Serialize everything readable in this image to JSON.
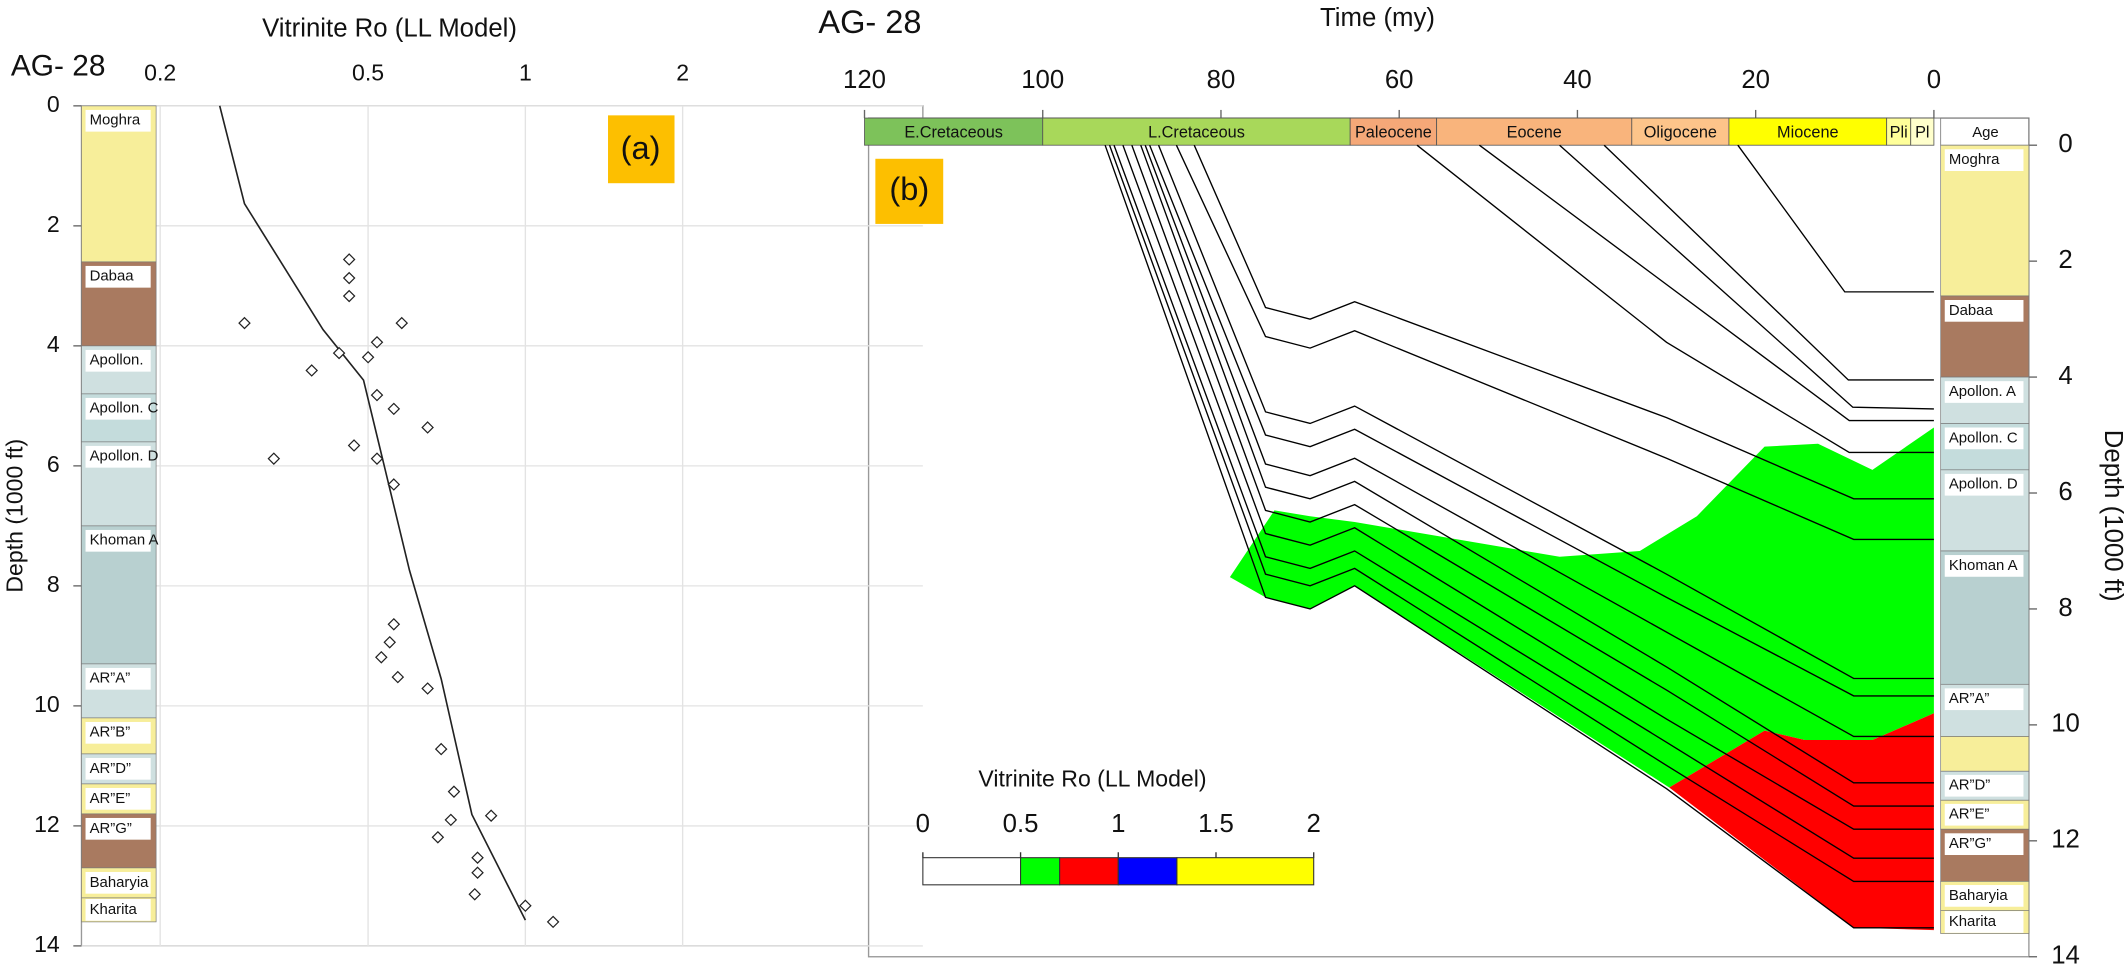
{
  "chart_data": [
    {
      "type": "scatter",
      "label": "AG- 28",
      "panel_label": "(a)",
      "title": "Vitrinite Ro (LL Model)",
      "y_label": "Depth (1000 ft)",
      "log_x": true,
      "xlim": [
        0.2,
        2
      ],
      "xticks": [
        0.2,
        0.5,
        1,
        2
      ],
      "ylim": [
        0,
        14
      ],
      "yticks": [
        0,
        2,
        4,
        6,
        8,
        10,
        12,
        14
      ],
      "grid": true,
      "x": [
        0.46,
        0.46,
        0.46,
        0.29,
        0.58,
        0.52,
        0.44,
        0.5,
        0.39,
        0.52,
        0.56,
        0.65,
        0.47,
        0.33,
        0.52,
        0.56,
        0.56,
        0.55,
        0.53,
        0.57,
        0.65,
        0.69,
        0.73,
        0.72,
        0.86,
        0.68,
        0.81,
        0.81,
        0.8,
        1.0,
        1.13
      ],
      "values": [
        2.56,
        2.87,
        3.17,
        3.62,
        3.62,
        3.94,
        4.12,
        4.19,
        4.41,
        4.82,
        5.05,
        5.36,
        5.66,
        5.88,
        5.88,
        6.31,
        8.64,
        8.94,
        9.19,
        9.52,
        9.71,
        10.72,
        11.43,
        11.9,
        11.83,
        12.19,
        12.53,
        12.78,
        13.14,
        13.33,
        13.6
      ],
      "line": {
        "x": [
          0.26,
          0.29,
          0.41,
          0.49,
          0.6,
          0.69,
          0.79,
          1.0
        ],
        "values": [
          0,
          1.63,
          3.73,
          4.57,
          7.74,
          9.55,
          11.81,
          13.57
        ]
      },
      "layers": [
        {
          "label": "Moghra",
          "top": 0,
          "base": 2.6,
          "color": "#f7ee9a"
        },
        {
          "label": "Dabaa",
          "top": 2.6,
          "base": 4.0,
          "color": "#a97a60"
        },
        {
          "label": "Apollon.",
          "top": 4.0,
          "base": 4.8,
          "color": "#cfe0e0"
        },
        {
          "label": "Apollon. C",
          "top": 4.8,
          "base": 5.6,
          "color": "#c4dcdc"
        },
        {
          "label": "Apollon. D",
          "top": 5.6,
          "base": 7.0,
          "color": "#cfe0e0"
        },
        {
          "label": "Khoman A",
          "top": 7.0,
          "base": 9.3,
          "color": "#b8d0d0"
        },
        {
          "label": "AR”A”",
          "top": 9.3,
          "base": 10.2,
          "color": "#cfe0e0"
        },
        {
          "label": "AR”B”",
          "top": 10.2,
          "base": 10.8,
          "color": "#f7ee9a"
        },
        {
          "label": "AR”D”",
          "top": 10.8,
          "base": 11.3,
          "color": "#cfe0e0"
        },
        {
          "label": "AR”E”",
          "top": 11.3,
          "base": 11.8,
          "color": "#f7ee9a"
        },
        {
          "label": "AR”G”",
          "top": 11.8,
          "base": 12.7,
          "color": "#a97a60"
        },
        {
          "label": "Baharyia",
          "top": 12.7,
          "base": 13.2,
          "color": "#f7ee9a"
        },
        {
          "label": "Kharita",
          "top": 13.2,
          "base": 13.6,
          "color": "#f7ee9a"
        }
      ]
    },
    {
      "type": "burial",
      "label": "AG- 28",
      "panel_label": "(b)",
      "x_label": "Time (my)",
      "y_label": "Depth (1000 ft)",
      "xlim": [
        120,
        0
      ],
      "xticks": [
        120,
        100,
        80,
        60,
        40,
        20,
        0
      ],
      "ylim": [
        0,
        14
      ],
      "yticks": [
        0,
        2,
        4,
        6,
        8,
        10,
        12,
        14
      ],
      "age_label": "Age",
      "age_bar": [
        {
          "label": "E.Cretaceous",
          "start": 120,
          "end": 100,
          "color": "#7dc25a"
        },
        {
          "label": "L.Cretaceous",
          "start": 100,
          "end": 65.5,
          "color": "#a8d85a"
        },
        {
          "label": "Paleocene",
          "start": 65.5,
          "end": 55.8,
          "color": "#f5a878"
        },
        {
          "label": "Eocene",
          "start": 55.8,
          "end": 33.9,
          "color": "#f9b47c"
        },
        {
          "label": "Oligocene",
          "start": 33.9,
          "end": 23,
          "color": "#fdc48a"
        },
        {
          "label": "Miocene",
          "start": 23,
          "end": 5.3,
          "color": "#ffff00"
        },
        {
          "label": "Pli",
          "start": 5.3,
          "end": 2.6,
          "color": "#ffff99"
        },
        {
          "label": "Pl",
          "start": 2.6,
          "end": 0,
          "color": "#ffffcc"
        }
      ],
      "line_color": "#000000",
      "lines": [
        {
          "x": [
            22,
            10,
            0
          ],
          "values": [
            0,
            2.53,
            2.53
          ]
        },
        {
          "x": [
            37,
            9.6,
            0
          ],
          "values": [
            0,
            4.05,
            4.05
          ]
        },
        {
          "x": [
            42,
            9.1,
            0
          ],
          "values": [
            0,
            4.52,
            4.55
          ]
        },
        {
          "x": [
            51,
            9.5,
            0
          ],
          "values": [
            0,
            4.75,
            4.75
          ]
        },
        {
          "x": [
            58,
            30,
            9.5,
            0
          ],
          "values": [
            0,
            3.4,
            5.3,
            5.3
          ]
        },
        {
          "x": [
            83,
            75,
            70,
            65,
            30,
            9,
            0
          ],
          "values": [
            0,
            2.8,
            3.0,
            2.7,
            4.7,
            6.1,
            6.1
          ]
        },
        {
          "x": [
            85,
            75,
            70,
            65,
            30,
            9,
            0
          ],
          "values": [
            0,
            3.3,
            3.5,
            3.2,
            5.4,
            6.8,
            6.8
          ]
        },
        {
          "x": [
            87,
            75,
            70,
            65,
            30,
            9,
            0
          ],
          "values": [
            0,
            4.6,
            4.8,
            4.5,
            7.4,
            9.2,
            9.2
          ]
        },
        {
          "x": [
            88,
            75,
            70,
            65,
            30,
            9,
            0
          ],
          "values": [
            0,
            5.0,
            5.2,
            4.9,
            7.8,
            9.5,
            9.5
          ]
        },
        {
          "x": [
            88.5,
            75,
            70,
            65,
            30,
            9,
            0
          ],
          "values": [
            0,
            5.5,
            5.7,
            5.4,
            8.4,
            10.2,
            10.2
          ]
        },
        {
          "x": [
            89,
            75,
            70,
            65,
            30,
            9,
            0
          ],
          "values": [
            0,
            5.9,
            6.1,
            5.8,
            9.0,
            11.0,
            11.0
          ]
        },
        {
          "x": [
            90,
            75,
            70,
            65,
            30,
            9,
            0
          ],
          "values": [
            0,
            6.3,
            6.5,
            6.2,
            9.4,
            11.4,
            11.4
          ]
        },
        {
          "x": [
            91,
            75,
            70,
            65,
            30,
            9,
            0
          ],
          "values": [
            0,
            6.7,
            6.9,
            6.6,
            9.9,
            11.8,
            11.8
          ]
        },
        {
          "x": [
            92,
            75,
            70,
            65,
            30,
            9,
            0
          ],
          "values": [
            0,
            7.1,
            7.3,
            7.0,
            10.3,
            12.3,
            12.3
          ]
        },
        {
          "x": [
            92.5,
            75,
            70,
            65,
            30,
            9,
            0
          ],
          "values": [
            0,
            7.4,
            7.6,
            7.3,
            10.7,
            12.7,
            12.7
          ]
        },
        {
          "x": [
            93,
            75,
            70,
            65,
            30,
            9,
            0
          ],
          "values": [
            0,
            7.8,
            8.0,
            7.6,
            11.1,
            13.5,
            13.5
          ]
        }
      ],
      "zones": [
        {
          "color": "#00ff00",
          "x": [
            79,
            74,
            70,
            65,
            42,
            33,
            26.6,
            19,
            13,
            6.9,
            0,
            0,
            6.9,
            14.5,
            19,
            29.7,
            65,
            70,
            75
          ],
          "values": [
            7.45,
            6.3,
            6.4,
            6.5,
            7.1,
            7.0,
            6.4,
            5.2,
            5.15,
            5.6,
            4.87,
            9.8,
            10.26,
            10.26,
            10.1,
            11.08,
            7.6,
            8.0,
            7.8
          ]
        },
        {
          "color": "#ff0000",
          "x": [
            29.7,
            19,
            14.5,
            6.9,
            0,
            0,
            9
          ],
          "values": [
            11.08,
            10.1,
            10.26,
            10.26,
            9.8,
            13.54,
            13.5
          ]
        }
      ],
      "legend": {
        "title": "Vitrinite Ro (LL Model)",
        "ticks": [
          0,
          0.5,
          1,
          1.5,
          2
        ],
        "stops": [
          0,
          0.5,
          0.7,
          1.0,
          1.3,
          2
        ],
        "colors": [
          "#ffffff",
          "#00ff00",
          "#ff0000",
          "#0000ff",
          "#ffff00"
        ]
      },
      "layers": [
        {
          "label": "Moghra",
          "top": 0,
          "base": 2.6,
          "color": "#f7ee9a"
        },
        {
          "label": "Dabaa",
          "top": 2.6,
          "base": 4.0,
          "color": "#a97a60"
        },
        {
          "label": "Apollon. A",
          "top": 4.0,
          "base": 4.8,
          "color": "#cfe0e0"
        },
        {
          "label": "Apollon. C",
          "top": 4.8,
          "base": 5.6,
          "color": "#c4dcdc"
        },
        {
          "label": "Apollon. D",
          "top": 5.6,
          "base": 7.0,
          "color": "#cfe0e0"
        },
        {
          "label": "Khoman A",
          "top": 7.0,
          "base": 9.3,
          "color": "#b8d0d0"
        },
        {
          "label": "AR”A”",
          "top": 9.3,
          "base": 10.2,
          "color": "#cfe0e0"
        },
        {
          "label": null,
          "top": 10.2,
          "base": 10.8,
          "color": "#f7ee9a"
        },
        {
          "label": "AR”D”",
          "top": 10.8,
          "base": 11.3,
          "color": "#cfe0e0"
        },
        {
          "label": "AR”E”",
          "top": 11.3,
          "base": 11.8,
          "color": "#f7ee9a"
        },
        {
          "label": "AR”G”",
          "top": 11.8,
          "base": 12.7,
          "color": "#a97a60"
        },
        {
          "label": "Baharyia",
          "top": 12.7,
          "base": 13.2,
          "color": "#f7ee9a"
        },
        {
          "label": "Kharita",
          "top": 13.2,
          "base": 13.6,
          "color": "#f7ee9a"
        }
      ]
    }
  ]
}
